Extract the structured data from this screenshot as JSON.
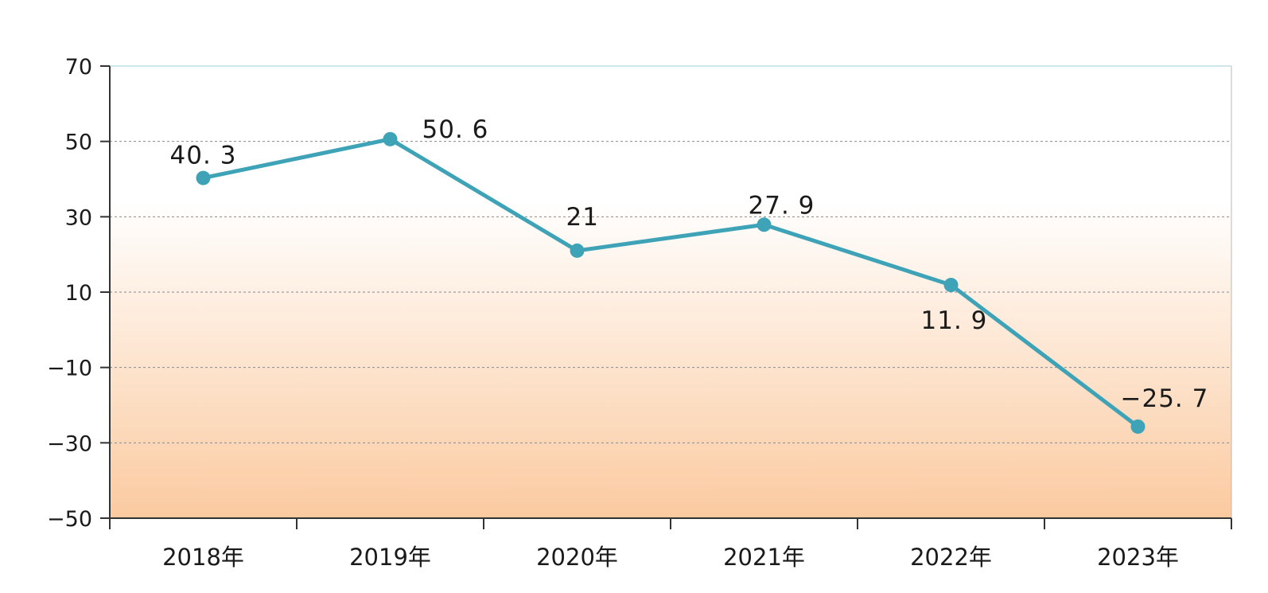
{
  "chart_data": {
    "type": "line",
    "title": "",
    "xlabel": "",
    "ylabel": "",
    "categories": [
      "2018年",
      "2019年",
      "2020年",
      "2021年",
      "2022年",
      "2023年"
    ],
    "series": [
      {
        "values": [
          40.3,
          50.6,
          21,
          27.9,
          11.9,
          -25.7
        ],
        "data_labels": [
          "40. 3",
          "50. 6",
          "21",
          "27. 9",
          "11. 9",
          "−25. 7"
        ],
        "color": "#3fa3b8"
      }
    ],
    "ylim": [
      -50,
      70
    ],
    "yticks": [
      70,
      50,
      30,
      10,
      -10,
      -30,
      -50
    ],
    "ytick_labels": [
      "70",
      "50",
      "30",
      "10",
      "−10",
      "−30",
      "−50"
    ],
    "grid": true,
    "legend": "none",
    "background_gradient": [
      "#ffffff",
      "#fbcaa0"
    ]
  }
}
